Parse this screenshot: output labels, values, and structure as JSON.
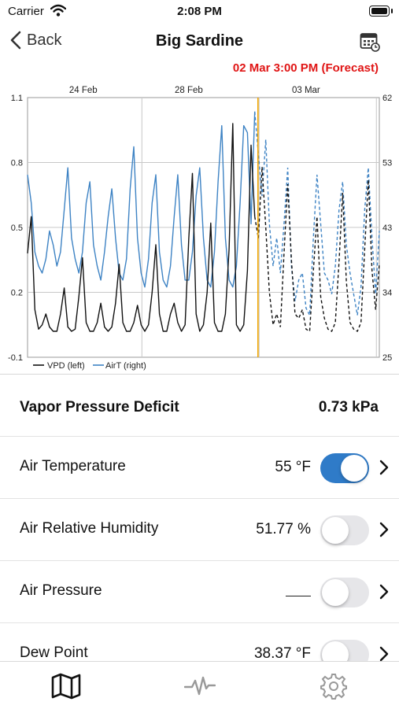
{
  "status_bar": {
    "carrier": "Carrier",
    "time": "2:08 PM"
  },
  "nav": {
    "back_label": "Back",
    "title": "Big Sardine"
  },
  "forecast_label": "02 Mar 3:00 PM (Forecast)",
  "chart_data": {
    "type": "line",
    "x_tick_labels": [
      "24 Feb",
      "28 Feb",
      "03 Mar"
    ],
    "y_left_ticks": [
      "1.1",
      "0.8",
      "0.5",
      "0.2",
      "-0.1"
    ],
    "y_right_ticks": [
      "62",
      "53",
      "43",
      "34",
      "25"
    ],
    "ylim_left": [
      -0.1,
      1.1
    ],
    "ylim_right": [
      25,
      62
    ],
    "grid": true,
    "legend_position": "bottom-left",
    "legend": [
      "VPD (left)",
      "AirT (right)"
    ],
    "x_days": [
      0,
      0.125,
      0.25,
      0.375,
      0.5,
      0.625,
      0.75,
      0.875,
      1.0,
      1.125,
      1.25,
      1.375,
      1.5,
      1.625,
      1.75,
      1.875,
      2.0,
      2.125,
      2.25,
      2.375,
      2.5,
      2.625,
      2.75,
      2.875,
      3.0,
      3.125,
      3.25,
      3.375,
      3.5,
      3.625,
      3.75,
      3.875,
      4.0,
      4.125,
      4.25,
      4.375,
      4.5,
      4.625,
      4.75,
      4.875,
      5.0,
      5.125,
      5.25,
      5.375,
      5.5,
      5.625,
      5.75,
      5.875,
      6.0,
      6.125,
      6.25,
      6.375,
      6.5,
      6.625,
      6.75,
      6.875,
      7.0,
      7.125,
      7.25,
      7.375,
      7.5,
      7.625,
      7.75,
      7.875,
      8.0,
      8.125,
      8.25,
      8.375,
      8.5,
      8.625,
      8.75,
      8.875,
      9.0,
      9.125,
      9.25,
      9.375,
      9.5,
      9.625,
      9.75,
      9.875,
      10.0,
      10.125,
      10.25,
      10.375,
      10.5,
      10.625,
      10.75,
      10.875,
      11.0,
      11.125,
      11.25,
      11.375,
      11.5,
      11.625,
      11.75,
      11.875,
      12.0
    ],
    "now_day": 7.86,
    "series": [
      {
        "name": "VPD (left)",
        "color": "#111111",
        "values": [
          0.38,
          0.55,
          0.12,
          0.03,
          0.05,
          0.1,
          0.04,
          0.02,
          0.02,
          0.1,
          0.22,
          0.04,
          0.02,
          0.03,
          0.18,
          0.36,
          0.06,
          0.02,
          0.02,
          0.06,
          0.15,
          0.04,
          0.02,
          0.04,
          0.15,
          0.33,
          0.06,
          0.02,
          0.02,
          0.06,
          0.14,
          0.05,
          0.02,
          0.05,
          0.2,
          0.42,
          0.1,
          0.02,
          0.02,
          0.1,
          0.15,
          0.06,
          0.02,
          0.05,
          0.45,
          0.75,
          0.1,
          0.02,
          0.05,
          0.2,
          0.52,
          0.06,
          0.02,
          0.02,
          0.1,
          0.4,
          0.98,
          0.05,
          0.02,
          0.05,
          0.3,
          0.88,
          0.55,
          0.45,
          0.78,
          0.5,
          0.2,
          0.05,
          0.1,
          0.04,
          0.38,
          0.7,
          0.35,
          0.1,
          0.08,
          0.12,
          0.03,
          0.02,
          0.3,
          0.55,
          0.18,
          0.08,
          0.03,
          0.02,
          0.06,
          0.34,
          0.66,
          0.25,
          0.06,
          0.03,
          0.02,
          0.06,
          0.4,
          0.72,
          0.3,
          0.12,
          0.33
        ]
      },
      {
        "name": "AirT (right)",
        "color": "#3e83c4",
        "values": [
          51,
          47,
          40,
          38,
          37,
          39,
          43,
          41,
          38,
          40,
          46,
          52,
          42,
          39,
          37,
          40,
          47,
          50,
          41,
          38,
          36,
          40,
          45,
          49,
          42,
          37,
          36,
          39,
          49,
          55,
          42,
          37,
          35,
          39,
          47,
          51,
          40,
          36,
          35,
          38,
          45,
          51,
          41,
          36,
          36,
          40,
          48,
          52,
          42,
          36,
          35,
          40,
          50,
          58,
          42,
          36,
          35,
          38,
          47,
          58,
          57,
          44,
          60,
          54,
          48,
          56,
          44,
          38,
          42,
          37,
          44,
          52,
          38,
          33,
          36,
          37,
          32,
          31,
          42,
          51,
          44,
          37,
          36,
          34,
          38,
          46,
          50,
          41,
          37,
          34,
          31,
          35,
          46,
          52,
          42,
          34,
          43
        ]
      }
    ]
  },
  "vpd": {
    "label": "Vapor Pressure Deficit",
    "value": "0.73 kPa"
  },
  "rows": [
    {
      "label": "Air Temperature",
      "value": "55 °F",
      "on": true
    },
    {
      "label": "Air Relative Humidity",
      "value": "51.77 %",
      "on": false
    },
    {
      "label": "Air Pressure",
      "value": "",
      "on": false
    },
    {
      "label": "Dew Point",
      "value": "38.37 °F",
      "on": false
    }
  ],
  "icons": {
    "back": "chevron-left-icon",
    "calendar": "calendar-icon",
    "chevron": "chevron-right-icon",
    "map": "map-icon",
    "graph": "activity-icon",
    "settings": "gear-icon"
  }
}
